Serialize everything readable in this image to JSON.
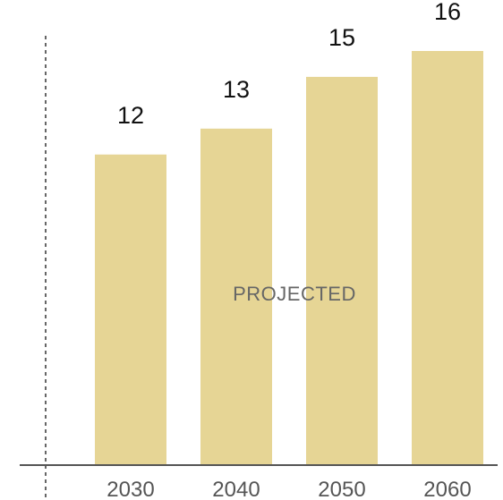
{
  "chart_data": {
    "type": "bar",
    "categories": [
      "2030",
      "2040",
      "2050",
      "2060"
    ],
    "values": [
      12,
      13,
      15,
      16
    ],
    "data_labels": [
      "12",
      "13",
      "15",
      "16"
    ],
    "annotation": "PROJECTED",
    "title": "",
    "xlabel": "",
    "ylabel": "",
    "ylim": [
      0,
      16
    ],
    "grid": false,
    "legend": "none",
    "colors": {
      "bar": "#e6d595",
      "axis": "#555555",
      "divider": "#666666",
      "label": "#111111",
      "tick": "#555555",
      "annotation": "#666666"
    }
  }
}
